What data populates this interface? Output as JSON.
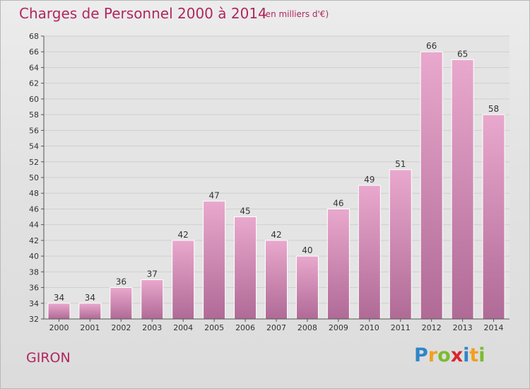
{
  "title": "Charges de Personnel 2000 à 2014",
  "subtitle": "(en milliers d'€)",
  "commune": "GIRON",
  "logo": {
    "letters": [
      "P",
      "r",
      "o",
      "x",
      "i",
      "t",
      "i"
    ],
    "colors": [
      "#2f86c6",
      "#f0a020",
      "#7cbb2e",
      "#d9262c",
      "#2f86c6",
      "#f0a020",
      "#7cbb2e"
    ]
  },
  "colors": {
    "accent": "#b0275f",
    "bar_top": "#e9a8cd",
    "bar_bottom": "#b06a96",
    "bar_edge": "#ffffff"
  },
  "chart_data": {
    "type": "bar",
    "title": "Charges de Personnel 2000 à 2014",
    "xlabel": "",
    "ylabel": "(en milliers d'€)",
    "categories": [
      "2000",
      "2001",
      "2002",
      "2003",
      "2004",
      "2005",
      "2006",
      "2007",
      "2008",
      "2009",
      "2010",
      "2011",
      "2012",
      "2013",
      "2014"
    ],
    "values": [
      34,
      34,
      36,
      37,
      42,
      47,
      45,
      42,
      40,
      46,
      49,
      51,
      66,
      65,
      58
    ],
    "ylim": [
      32,
      68
    ],
    "ytick_step": 2,
    "grid": true
  }
}
